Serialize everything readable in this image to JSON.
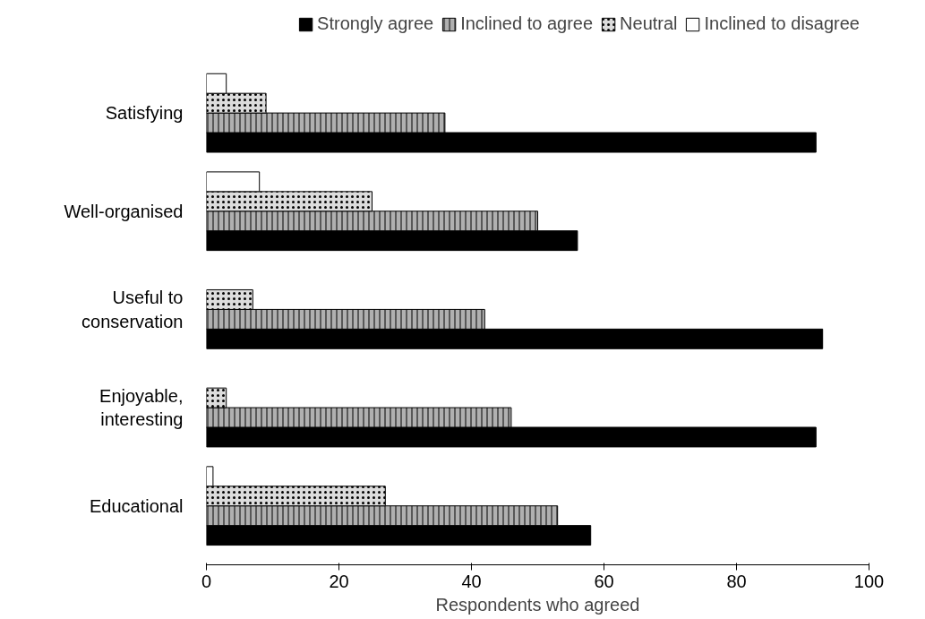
{
  "chart_data": {
    "type": "bar",
    "orientation": "horizontal",
    "xlabel": "Respondents who agreed",
    "categories": [
      "Satisfying",
      "Well-organised",
      "Useful to conservation",
      "Enjoyable, interesting",
      "Educational"
    ],
    "series": [
      {
        "name": "Strongly agree",
        "color": "#000000",
        "values": [
          92,
          56,
          93,
          92,
          58
        ]
      },
      {
        "name": "Inclined to agree",
        "color": "#b0b0b0",
        "values": [
          36,
          50,
          42,
          46,
          53
        ]
      },
      {
        "name": "Neutral",
        "color": "#dcdcdc",
        "values": [
          9,
          25,
          7,
          3,
          27
        ]
      },
      {
        "name": "Inclined to disagree",
        "color": "#ffffff",
        "values": [
          3,
          8,
          null,
          null,
          1
        ]
      }
    ],
    "xlim": [
      0,
      100
    ],
    "xticks": [
      0,
      20,
      40,
      60,
      80,
      100
    ],
    "grid": false,
    "legend": "top"
  }
}
